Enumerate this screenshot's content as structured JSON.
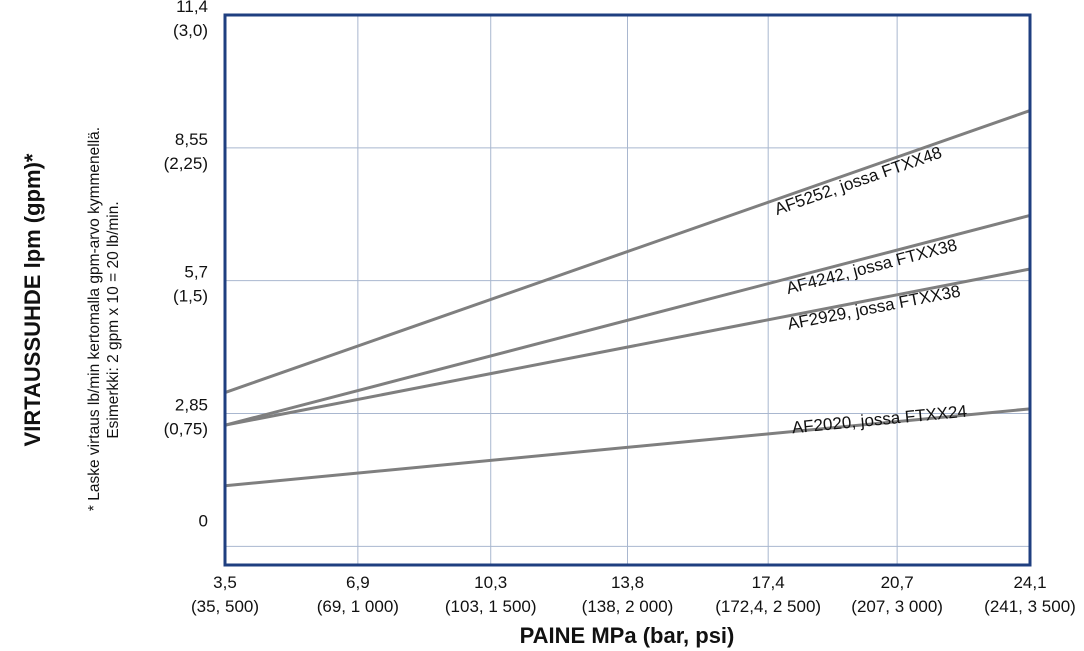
{
  "chart_data": {
    "type": "line",
    "title": "",
    "xlabel": "PAINE MPa (bar, psi)",
    "ylabel": "VIRTAUSSUHDE lpm (gpm)*",
    "footnote": {
      "line1": "* Laske virtaus lb/min kertomalla gpm-arvo kymmenellä.",
      "line2": "Esimerkki: 2 gpm x 10 = 20 lb/min."
    },
    "x_ticks": [
      {
        "value": 3.5,
        "label": "3,5",
        "sublabel": "(35, 500)"
      },
      {
        "value": 6.9,
        "label": "6,9",
        "sublabel": "(69, 1 000)"
      },
      {
        "value": 10.3,
        "label": "10,3",
        "sublabel": "(103, 1 500)"
      },
      {
        "value": 13.8,
        "label": "13,8",
        "sublabel": "(138, 2 000)"
      },
      {
        "value": 17.4,
        "label": "17,4",
        "sublabel": "(172,4, 2 500)"
      },
      {
        "value": 20.7,
        "label": "20,7",
        "sublabel": "(207, 3 000)"
      },
      {
        "value": 24.1,
        "label": "24,1",
        "sublabel": "(241, 3 500)"
      }
    ],
    "y_ticks": [
      {
        "value": 0,
        "label": "0",
        "sublabel": ""
      },
      {
        "value": 2.85,
        "label": "2,85",
        "sublabel": "(0,75)"
      },
      {
        "value": 5.7,
        "label": "5,7",
        "sublabel": "(1,5)"
      },
      {
        "value": 8.55,
        "label": "8,55",
        "sublabel": "(2,25)"
      },
      {
        "value": 11.4,
        "label": "11,4",
        "sublabel": "(3,0)"
      }
    ],
    "xlim": [
      3.5,
      24.1
    ],
    "ylim": [
      -0.4,
      11.4
    ],
    "grid": true,
    "legend": "none",
    "series": [
      {
        "name": "AF5252, jossa FTXX48",
        "x": [
          3.5,
          24.1
        ],
        "y": [
          3.3,
          9.35
        ]
      },
      {
        "name": "AF4242, jossa FTXX38",
        "x": [
          3.5,
          24.1
        ],
        "y": [
          2.6,
          7.1
        ]
      },
      {
        "name": "AF2929, jossa FTXX38",
        "x": [
          3.5,
          24.1
        ],
        "y": [
          2.6,
          5.95
        ]
      },
      {
        "name": "AF2020, jossa FTXX24",
        "x": [
          3.5,
          24.1
        ],
        "y": [
          1.3,
          2.95
        ]
      }
    ],
    "colors": {
      "frame": "#1f3f80",
      "grid": "#a9b7cf",
      "series": "#7f7f7f"
    }
  }
}
